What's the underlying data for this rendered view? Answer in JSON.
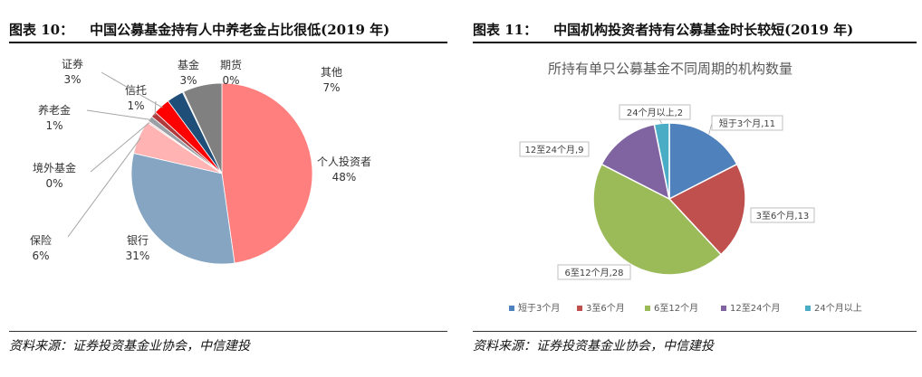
{
  "left": {
    "figure_number": "图表 10：",
    "figure_title": "中国公募基金持有人中养老金占比很低(2019 年)",
    "source": "资料来源：证券投资基金业协会，中信建投"
  },
  "right": {
    "figure_number": "图表 11：",
    "figure_title": "中国机构投资者持有公募基金时长较短(2019 年)",
    "source": "资料来源：证券投资基金业协会，中信建投"
  },
  "chart_data": [
    {
      "type": "pie",
      "title": "",
      "slices": [
        {
          "name": "个人投资者",
          "pct_label": "48%",
          "value": 48,
          "color": "#ff7f7f"
        },
        {
          "name": "银行",
          "pct_label": "31%",
          "value": 31,
          "color": "#85a5c2"
        },
        {
          "name": "保险",
          "pct_label": "6%",
          "value": 6,
          "color": "#ffb3b3"
        },
        {
          "name": "境外基金",
          "pct_label": "0%",
          "value": 0.3,
          "color": "#f2c9c9"
        },
        {
          "name": "养老金",
          "pct_label": "1%",
          "value": 1,
          "color": "#9aa0a6"
        },
        {
          "name": "信托",
          "pct_label": "1%",
          "value": 1,
          "color": "#b0393b"
        },
        {
          "name": "证券",
          "pct_label": "3%",
          "value": 3,
          "color": "#ff0000"
        },
        {
          "name": "基金",
          "pct_label": "3%",
          "value": 3,
          "color": "#1f4e79"
        },
        {
          "name": "期货",
          "pct_label": "0%",
          "value": 0.2,
          "color": "#c0c0c0"
        },
        {
          "name": "其他",
          "pct_label": "7%",
          "value": 7,
          "color": "#808080"
        }
      ]
    },
    {
      "type": "pie",
      "title": "所持有单只公募基金不同周期的机构数量",
      "legend_position": "bottom",
      "slices": [
        {
          "name": "短于3个月",
          "value": 11,
          "label": "短于3个月,11",
          "color": "#4f81bd"
        },
        {
          "name": "3至6个月",
          "value": 13,
          "label": "3至6个月,13",
          "color": "#c0504d"
        },
        {
          "name": "6至12个月",
          "value": 28,
          "label": "6至12个月,28",
          "color": "#9bbb59"
        },
        {
          "name": "12至24个月",
          "value": 9,
          "label": "12至24个月,9",
          "color": "#8064a2"
        },
        {
          "name": "24个月以上",
          "value": 2,
          "label": "24个月以上,2",
          "color": "#4bacc6"
        }
      ]
    }
  ]
}
